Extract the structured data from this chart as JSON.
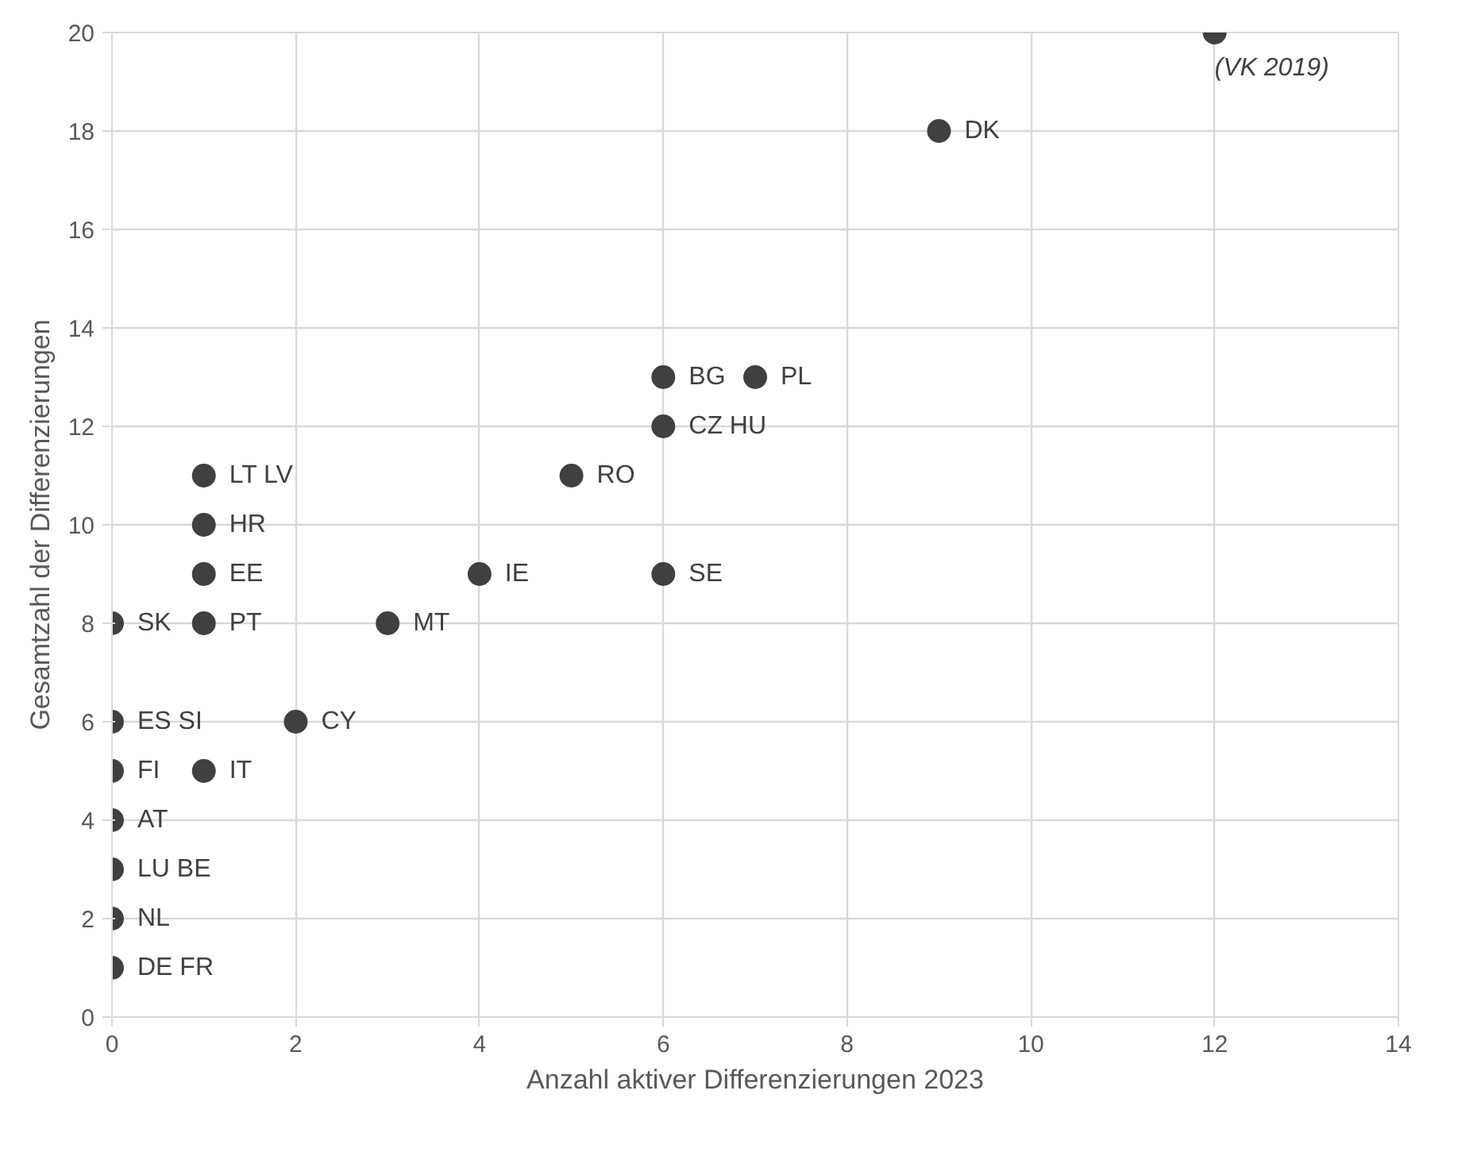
{
  "chart_data": {
    "type": "scatter",
    "xlabel": "Anzahl aktiver Differenzierungen 2023",
    "ylabel": "Gesamtzahl der Differenzierungen",
    "x": [
      12,
      9,
      6,
      7,
      6,
      5,
      1,
      1,
      1,
      4,
      6,
      0,
      1,
      3,
      0,
      2,
      0,
      1,
      0,
      0,
      0,
      0
    ],
    "series": [
      {
        "color": "#404040",
        "values": [
          20,
          18,
          13,
          13,
          12,
          11,
          11,
          10,
          9,
          9,
          9,
          8,
          8,
          8,
          6,
          6,
          5,
          5,
          4,
          3,
          2,
          1
        ]
      }
    ],
    "xlim": [
      0,
      14
    ],
    "ylim": [
      0,
      20
    ],
    "xticks": [
      0,
      2,
      4,
      6,
      8,
      10,
      12,
      14
    ],
    "yticks": [
      0,
      2,
      4,
      6,
      8,
      10,
      12,
      14,
      16,
      18,
      20
    ],
    "grid": true,
    "marker": "circle",
    "annotations": [
      {
        "text": "(VK 2019)",
        "x": 12,
        "y": 20
      },
      {
        "text": "DK",
        "x": 9,
        "y": 18
      },
      {
        "text": "BG",
        "x": 6,
        "y": 13
      },
      {
        "text": "PL",
        "x": 7,
        "y": 13
      },
      {
        "text": "CZ  HU",
        "x": 6,
        "y": 12
      },
      {
        "text": "RO",
        "x": 5,
        "y": 11
      },
      {
        "text": "LT LV",
        "x": 1,
        "y": 11
      },
      {
        "text": "HR",
        "x": 1,
        "y": 10
      },
      {
        "text": "EE",
        "x": 1,
        "y": 9
      },
      {
        "text": "IE",
        "x": 4,
        "y": 9
      },
      {
        "text": "SE",
        "x": 6,
        "y": 9
      },
      {
        "text": "SK",
        "x": 0,
        "y": 8
      },
      {
        "text": "PT",
        "x": 1,
        "y": 8
      },
      {
        "text": "MT",
        "x": 3,
        "y": 8
      },
      {
        "text": "ES SI",
        "x": 0,
        "y": 6
      },
      {
        "text": "CY",
        "x": 2,
        "y": 6
      },
      {
        "text": "FI",
        "x": 0,
        "y": 5
      },
      {
        "text": "IT",
        "x": 1,
        "y": 5
      },
      {
        "text": "AT",
        "x": 0,
        "y": 4
      },
      {
        "text": "LU BE",
        "x": 0,
        "y": 3
      },
      {
        "text": "NL",
        "x": 0,
        "y": 2
      },
      {
        "text": "DE FR",
        "x": 0,
        "y": 1
      }
    ]
  }
}
